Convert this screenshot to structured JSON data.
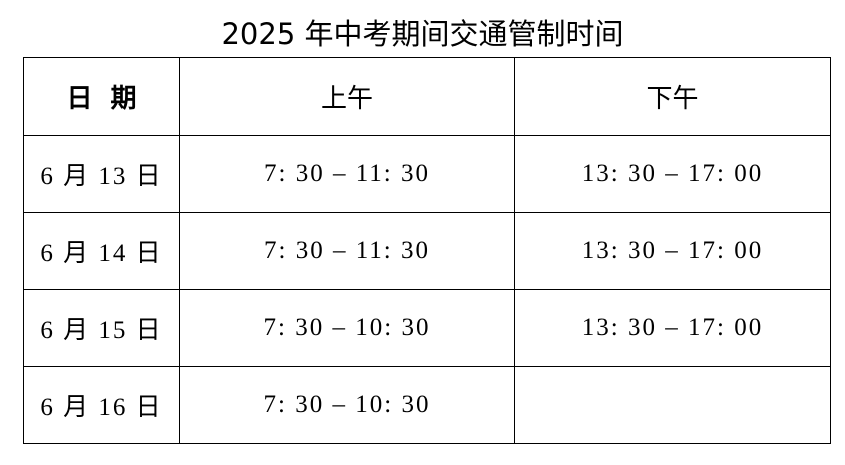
{
  "title": "2025 年中考期间交通管制时间",
  "table": {
    "headers": [
      "日  期",
      "上午",
      "下午"
    ],
    "rows": [
      {
        "date": "6 月 13 日",
        "morning": "7: 30 – 11: 30",
        "afternoon": "13: 30 – 17: 00"
      },
      {
        "date": "6 月 14 日",
        "morning": "7: 30 – 11: 30",
        "afternoon": "13: 30 – 17: 00"
      },
      {
        "date": "6 月 15 日",
        "morning": "7: 30 – 10: 30",
        "afternoon": "13: 30 – 17: 00"
      },
      {
        "date": "6 月 16 日",
        "morning": "7: 30 – 10: 30",
        "afternoon": ""
      }
    ]
  }
}
